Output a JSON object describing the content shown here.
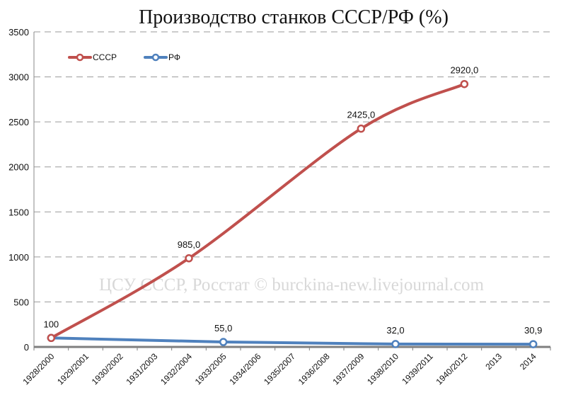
{
  "chart_data": {
    "type": "line",
    "title": "Производство станков СССР/РФ (%)",
    "watermark": "ЦСУ СССР, Росстат © burckina-new.livejournal.com",
    "categories": [
      "1928/2000",
      "1929/2001",
      "1930/2002",
      "1931/2003",
      "1932/2004",
      "1933/2005",
      "1934/2006",
      "1935/2007",
      "1936/2008",
      "1937/2009",
      "1938/2010",
      "1939/2011",
      "1940/2012",
      "2013",
      "2014"
    ],
    "ylim": [
      0,
      3500
    ],
    "yticks": [
      0,
      500,
      1000,
      1500,
      2000,
      2500,
      3000,
      3500
    ],
    "grid": "horizontal dashed",
    "legend_position": "top-left",
    "series": [
      {
        "name": "СССР",
        "color": "#c0504d",
        "smooth": true,
        "points": [
          {
            "category": "1928/2000",
            "value": 100,
            "label": "100"
          },
          {
            "category": "1932/2004",
            "value": 985.0,
            "label": "985,0"
          },
          {
            "category": "1937/2009",
            "value": 2425.0,
            "label": "2425,0"
          },
          {
            "category": "1940/2012",
            "value": 2920.0,
            "label": "2920,0"
          }
        ]
      },
      {
        "name": "РФ",
        "color": "#4f81bd",
        "smooth": false,
        "points": [
          {
            "category": "1928/2000",
            "value": 100,
            "label": ""
          },
          {
            "category": "1933/2005",
            "value": 55.0,
            "label": "55,0"
          },
          {
            "category": "1938/2010",
            "value": 32.0,
            "label": "32,0"
          },
          {
            "category": "2014",
            "value": 30.9,
            "label": "30,9"
          }
        ]
      }
    ]
  }
}
